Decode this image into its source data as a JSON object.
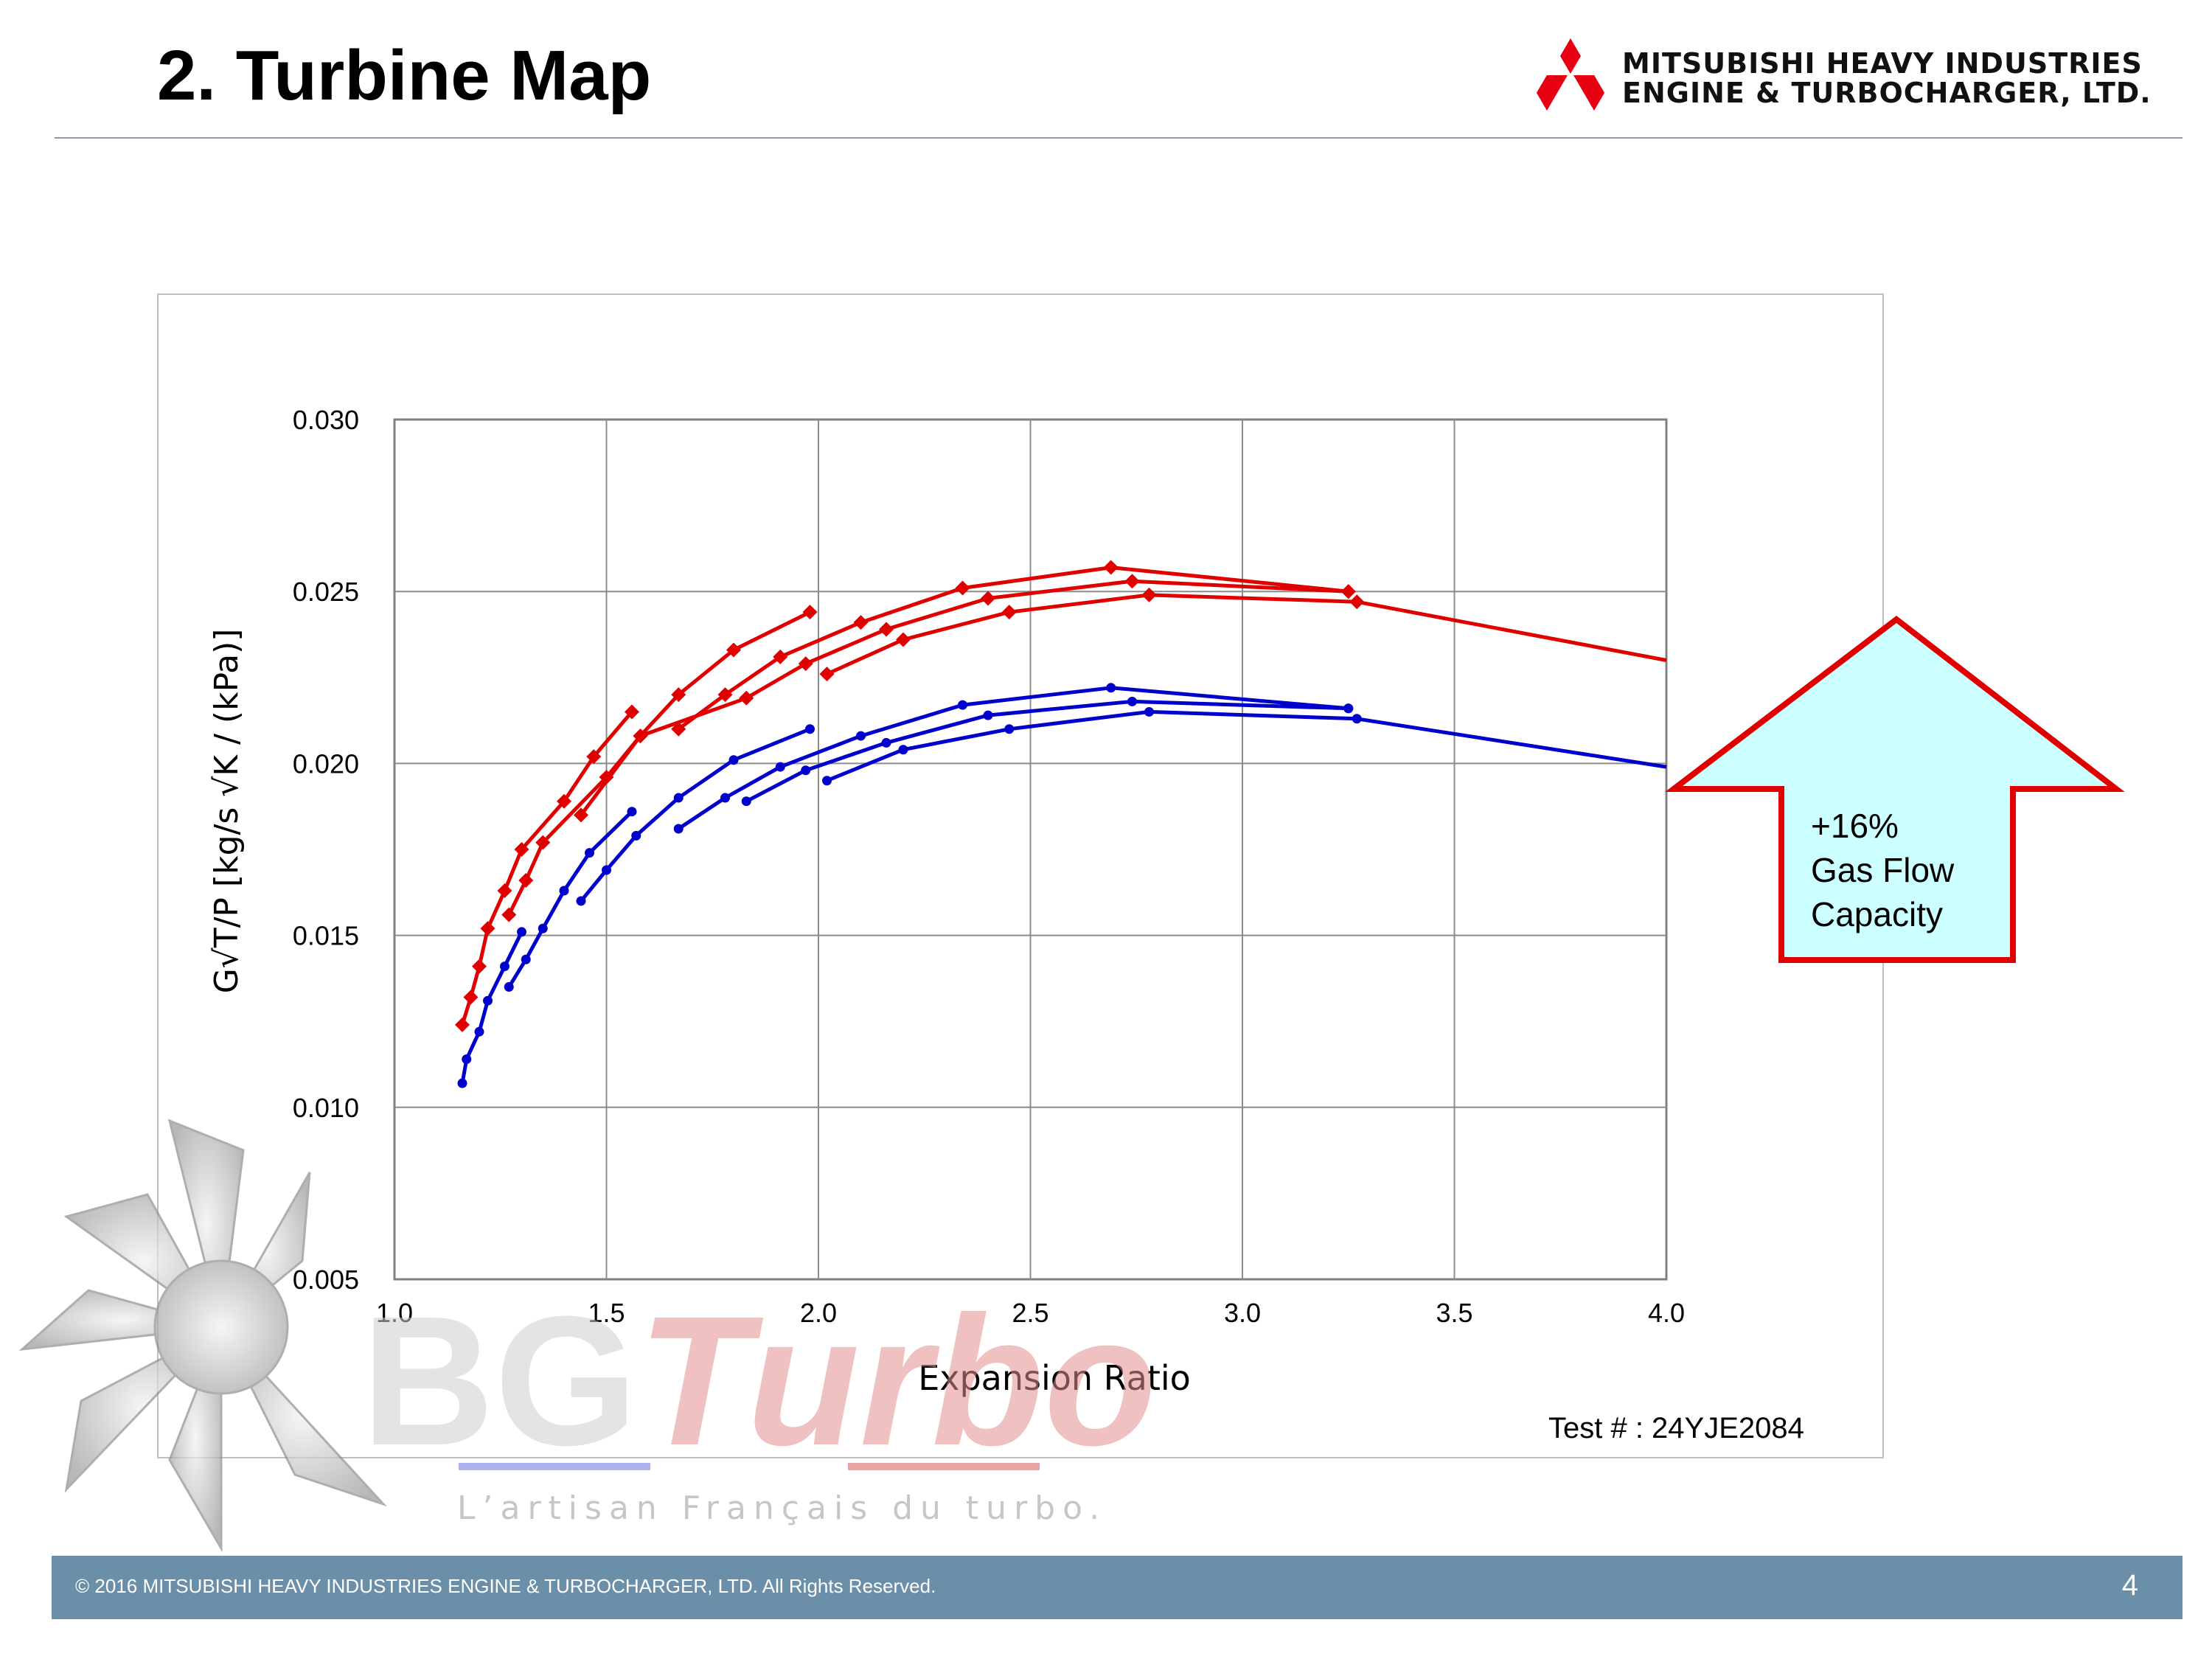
{
  "slide": {
    "title": "2. Turbine Map",
    "logo_line1": "MITSUBISHI HEAVY INDUSTRIES",
    "logo_line2": "ENGINE & TURBOCHARGER, LTD.",
    "footer": "© 2016 MITSUBISHI HEAVY INDUSTRIES ENGINE & TURBOCHARGER, LTD.  All Rights Reserved.",
    "page_number": "4"
  },
  "watermark": {
    "brand_1": "BG",
    "brand_2": "Turbo",
    "tagline": "L’artisan Français du turbo."
  },
  "callout": {
    "line1": "+16%",
    "line2": "Gas Flow",
    "line3": "Capacity",
    "fill": "#ccffff",
    "border": "#e00000"
  },
  "chart_data": {
    "type": "line",
    "xlabel": "Expansion Ratio",
    "ylabel": "G√T/P [kg/s √K / (kPa)]",
    "test_note": "Test # : 24YJE2084",
    "xlim": [
      1.0,
      4.0
    ],
    "ylim": [
      0.005,
      0.03
    ],
    "x_ticks": [
      "1.0",
      "1.5",
      "2.0",
      "2.5",
      "3.0",
      "3.5",
      "4.0"
    ],
    "y_ticks": [
      "0.005",
      "0.010",
      "0.015",
      "0.020",
      "0.025",
      "0.030"
    ],
    "grid": true,
    "colors": {
      "red": "#e00000",
      "blue": "#0000cc"
    },
    "series": [
      {
        "color": "red",
        "marker": "diamond",
        "points": [
          [
            1.16,
            0.0124
          ],
          [
            1.18,
            0.0132
          ],
          [
            1.2,
            0.0141
          ],
          [
            1.22,
            0.0152
          ],
          [
            1.26,
            0.0163
          ],
          [
            1.3,
            0.0175
          ],
          [
            1.4,
            0.0189
          ],
          [
            1.47,
            0.0202
          ],
          [
            1.56,
            0.0215
          ]
        ]
      },
      {
        "color": "red",
        "marker": "diamond",
        "points": [
          [
            1.27,
            0.0156
          ],
          [
            1.31,
            0.0166
          ],
          [
            1.35,
            0.0177
          ],
          [
            1.5,
            0.0196
          ],
          [
            1.58,
            0.0208
          ],
          [
            1.67,
            0.022
          ],
          [
            1.8,
            0.0233
          ],
          [
            1.98,
            0.0244
          ]
        ]
      },
      {
        "color": "red",
        "marker": "diamond",
        "points": [
          [
            1.67,
            0.021
          ],
          [
            1.78,
            0.022
          ],
          [
            1.91,
            0.0231
          ],
          [
            2.1,
            0.0241
          ],
          [
            2.34,
            0.0251
          ],
          [
            2.69,
            0.0257
          ],
          [
            3.25,
            0.025
          ]
        ]
      },
      {
        "color": "red",
        "marker": "diamond",
        "points": [
          [
            1.44,
            0.0185
          ],
          [
            1.58,
            0.0208
          ],
          [
            1.83,
            0.0219
          ],
          [
            1.97,
            0.0229
          ],
          [
            2.16,
            0.0239
          ],
          [
            2.4,
            0.0248
          ],
          [
            2.74,
            0.0253
          ],
          [
            3.25,
            0.025
          ]
        ]
      },
      {
        "color": "red",
        "marker": "diamond",
        "points": [
          [
            2.02,
            0.0226
          ],
          [
            2.2,
            0.0236
          ],
          [
            2.45,
            0.0244
          ],
          [
            2.78,
            0.0249
          ],
          [
            3.27,
            0.0247
          ]
        ]
      },
      {
        "color": "red",
        "marker": "none",
        "points": [
          [
            3.27,
            0.0247
          ],
          [
            4.0,
            0.023
          ]
        ]
      },
      {
        "color": "blue",
        "marker": "dot",
        "points": [
          [
            1.16,
            0.0107
          ],
          [
            1.17,
            0.0114
          ],
          [
            1.2,
            0.0122
          ],
          [
            1.22,
            0.0131
          ],
          [
            1.26,
            0.0141
          ],
          [
            1.3,
            0.0151
          ]
        ]
      },
      {
        "color": "blue",
        "marker": "dot",
        "points": [
          [
            1.27,
            0.0135
          ],
          [
            1.31,
            0.0143
          ],
          [
            1.35,
            0.0152
          ],
          [
            1.4,
            0.0163
          ],
          [
            1.46,
            0.0174
          ],
          [
            1.56,
            0.0186
          ]
        ]
      },
      {
        "color": "blue",
        "marker": "dot",
        "points": [
          [
            1.44,
            0.016
          ],
          [
            1.5,
            0.0169
          ],
          [
            1.57,
            0.0179
          ],
          [
            1.67,
            0.019
          ],
          [
            1.8,
            0.0201
          ],
          [
            1.98,
            0.021
          ]
        ]
      },
      {
        "color": "blue",
        "marker": "dot",
        "points": [
          [
            1.67,
            0.0181
          ],
          [
            1.78,
            0.019
          ],
          [
            1.91,
            0.0199
          ],
          [
            2.1,
            0.0208
          ],
          [
            2.34,
            0.0217
          ],
          [
            2.69,
            0.0222
          ],
          [
            3.25,
            0.0216
          ]
        ]
      },
      {
        "color": "blue",
        "marker": "dot",
        "points": [
          [
            1.83,
            0.0189
          ],
          [
            1.97,
            0.0198
          ],
          [
            2.16,
            0.0206
          ],
          [
            2.4,
            0.0214
          ],
          [
            2.74,
            0.0218
          ],
          [
            3.25,
            0.0216
          ]
        ]
      },
      {
        "color": "blue",
        "marker": "dot",
        "points": [
          [
            2.02,
            0.0195
          ],
          [
            2.2,
            0.0204
          ],
          [
            2.45,
            0.021
          ],
          [
            2.78,
            0.0215
          ],
          [
            3.27,
            0.0213
          ]
        ]
      },
      {
        "color": "blue",
        "marker": "none",
        "points": [
          [
            3.27,
            0.0213
          ],
          [
            4.0,
            0.0199
          ]
        ]
      }
    ]
  }
}
